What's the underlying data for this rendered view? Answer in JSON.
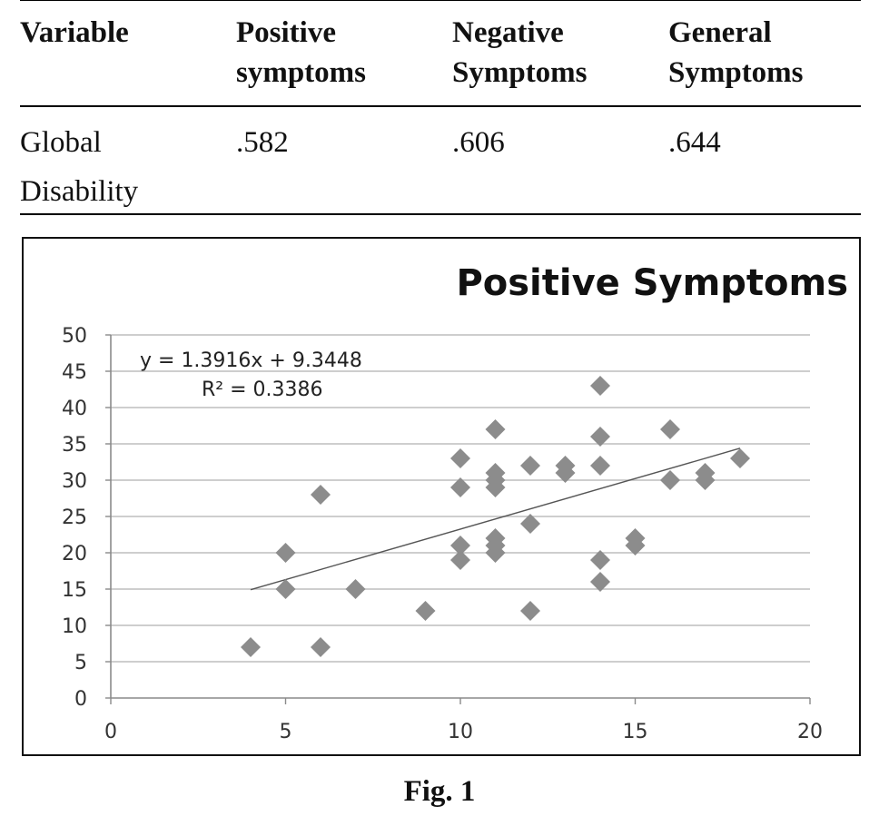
{
  "table": {
    "headers": [
      [
        "Variable"
      ],
      [
        "Positive",
        "symptoms"
      ],
      [
        "Negative",
        "Symptoms"
      ],
      [
        "General",
        "Symptoms"
      ]
    ],
    "row": {
      "label": [
        "Global",
        "Disability"
      ],
      "values": [
        ".582",
        ".606",
        ".644"
      ]
    }
  },
  "chart_data": {
    "type": "scatter",
    "title": "Positive Symptoms",
    "xlim": [
      0,
      20
    ],
    "ylim": [
      0,
      50
    ],
    "x_ticks": [
      "0",
      "5",
      "10",
      "15",
      "20"
    ],
    "y_ticks": [
      "0",
      "5",
      "10",
      "15",
      "20",
      "25",
      "30",
      "35",
      "40",
      "45",
      "50"
    ],
    "grid": "horizontal",
    "marker": "diamond",
    "marker_color": "#8c8c8c",
    "trendline": {
      "equation": "y = 1.3916x + 9.3448",
      "r_squared": "R² = 0.3386",
      "slope": 1.3916,
      "intercept": 9.3448,
      "x_range": [
        4,
        18
      ]
    },
    "points": [
      [
        4,
        7
      ],
      [
        5,
        20
      ],
      [
        5,
        15
      ],
      [
        6,
        28
      ],
      [
        6,
        7
      ],
      [
        7,
        15
      ],
      [
        9,
        12
      ],
      [
        10,
        33
      ],
      [
        10,
        29
      ],
      [
        10,
        21
      ],
      [
        10,
        19
      ],
      [
        11,
        37
      ],
      [
        11,
        31
      ],
      [
        11,
        30
      ],
      [
        11,
        29
      ],
      [
        11,
        22
      ],
      [
        11,
        21
      ],
      [
        11,
        20
      ],
      [
        12,
        32
      ],
      [
        12,
        24
      ],
      [
        12,
        12
      ],
      [
        13,
        32
      ],
      [
        13,
        31
      ],
      [
        14,
        43
      ],
      [
        14,
        36
      ],
      [
        14,
        32
      ],
      [
        14,
        19
      ],
      [
        14,
        16
      ],
      [
        15,
        22
      ],
      [
        15,
        21
      ],
      [
        16,
        37
      ],
      [
        16,
        30
      ],
      [
        17,
        31
      ],
      [
        17,
        30
      ],
      [
        18,
        33
      ]
    ]
  },
  "caption": "Fig. 1"
}
